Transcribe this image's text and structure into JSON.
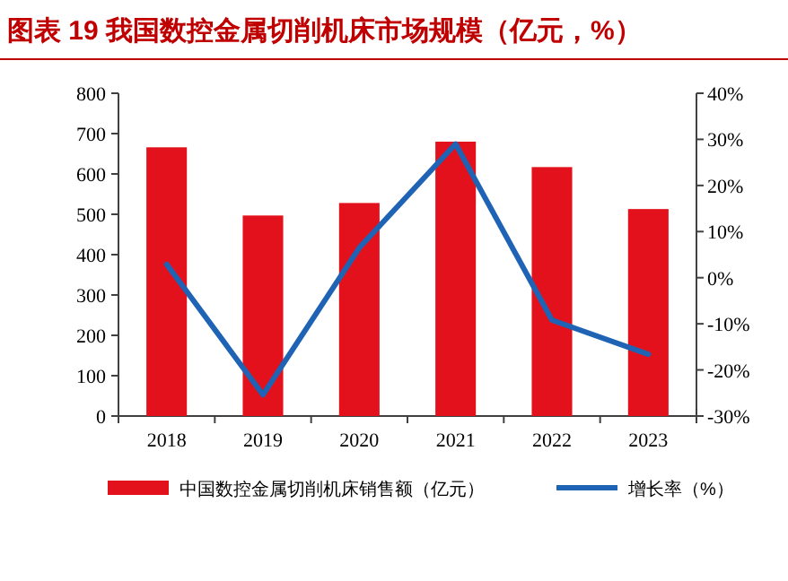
{
  "chart_data": {
    "type": "bar",
    "title": "图表 19  我国数控金属切削机床市场规模（亿元，%）",
    "categories": [
      "2018",
      "2019",
      "2020",
      "2021",
      "2022",
      "2023"
    ],
    "series": [
      {
        "name": "中国数控金属切削机床销售额（亿元）",
        "color": "#e3111b",
        "values": [
          666,
          497,
          528,
          680,
          617,
          513
        ]
      },
      {
        "name": "增长率（%）",
        "type": "line",
        "axis": "y2",
        "color": "#1f63b5",
        "values": [
          2.9,
          -25.4,
          6.5,
          29.0,
          -9.2,
          -16.6
        ]
      }
    ],
    "ylim": [
      0,
      800
    ],
    "yticks": [
      0,
      100,
      200,
      300,
      400,
      500,
      600,
      700,
      800
    ],
    "y2lim": [
      -30,
      40
    ],
    "y2ticks": [
      {
        "value": -30,
        "label": "-30%"
      },
      {
        "value": -20,
        "label": "-20%"
      },
      {
        "value": -10,
        "label": "-10%"
      },
      {
        "value": 0,
        "label": "0%"
      },
      {
        "value": 10,
        "label": "10%"
      },
      {
        "value": 20,
        "label": "20%"
      },
      {
        "value": 30,
        "label": "30%"
      },
      {
        "value": 40,
        "label": "40%"
      }
    ],
    "legend": "bottom"
  }
}
